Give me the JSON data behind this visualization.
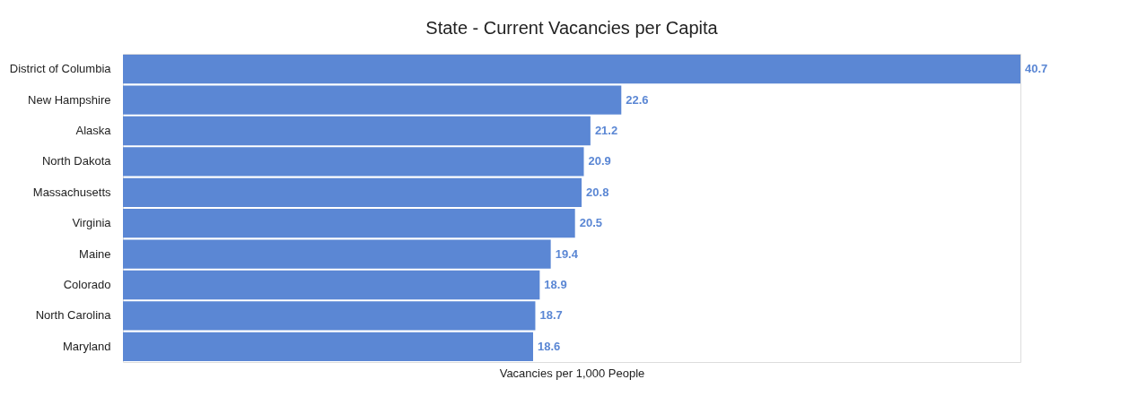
{
  "chart_data": {
    "type": "bar",
    "orientation": "horizontal",
    "title": "State - Current Vacancies per Capita",
    "xlabel": "Vacancies per 1,000 People",
    "categories": [
      "District of Columbia",
      "New Hampshire",
      "Alaska",
      "North Dakota",
      "Massachusetts",
      "Virginia",
      "Maine",
      "Colorado",
      "North Carolina",
      "Maryland"
    ],
    "values": [
      40.7,
      22.6,
      21.2,
      20.9,
      20.8,
      20.5,
      19.4,
      18.9,
      18.7,
      18.6
    ],
    "color": "#5b87d4",
    "data_labels": true
  }
}
